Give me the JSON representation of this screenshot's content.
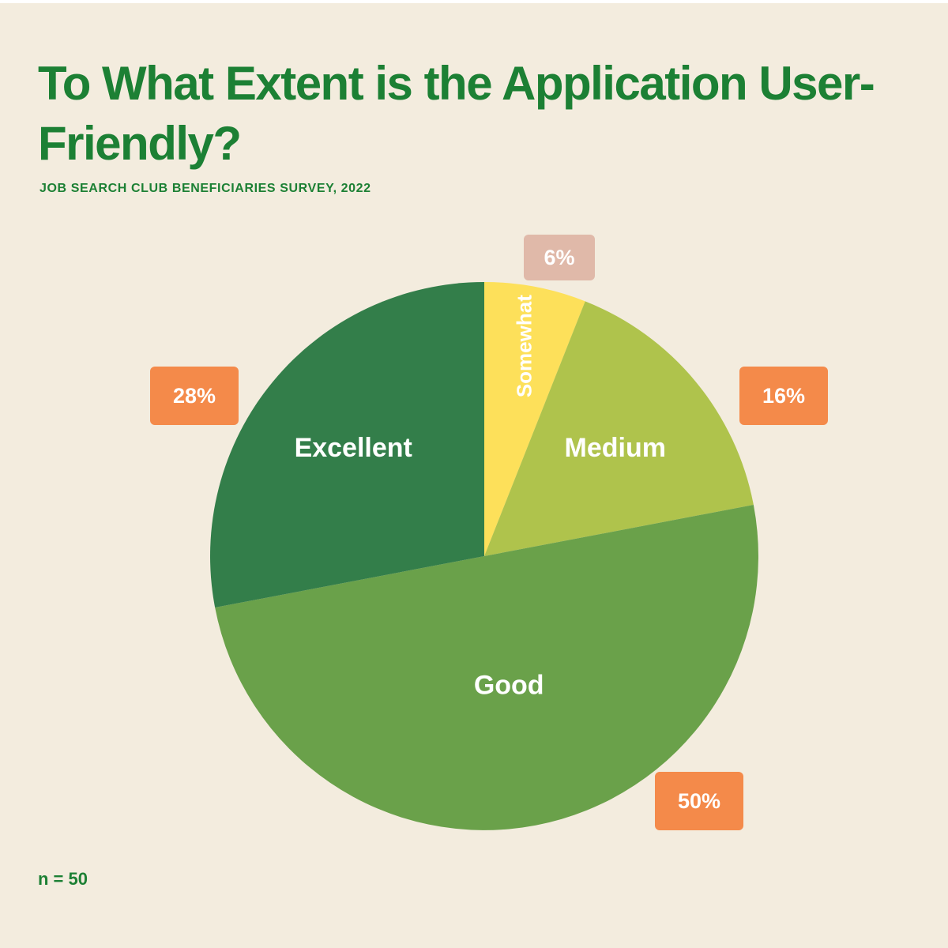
{
  "title": "To What Extent is the Application User-Friendly?",
  "subtitle": "JOB SEARCH CLUB BENEFICIARIES SURVEY, 2022",
  "sample_note": "n = 50",
  "colors": {
    "background": "#f3ecde",
    "title": "#1c8034",
    "badge": "#f48a4a",
    "badge_small": "#e0b9a9"
  },
  "chart_data": {
    "type": "pie",
    "title": "To What Extent is the Application User-Friendly?",
    "subtitle": "JOB SEARCH CLUB BENEFICIARIES SURVEY, 2022",
    "start": "12 o'clock, clockwise",
    "slices": [
      {
        "label": "Somewhat",
        "value": 6,
        "value_label": "6%",
        "color": "#fde05a"
      },
      {
        "label": "Medium",
        "value": 16,
        "value_label": "16%",
        "color": "#afc34c"
      },
      {
        "label": "Good",
        "value": 50,
        "value_label": "50%",
        "color": "#6aa14a"
      },
      {
        "label": "Excellent",
        "value": 28,
        "value_label": "28%",
        "color": "#337e4a"
      }
    ]
  }
}
